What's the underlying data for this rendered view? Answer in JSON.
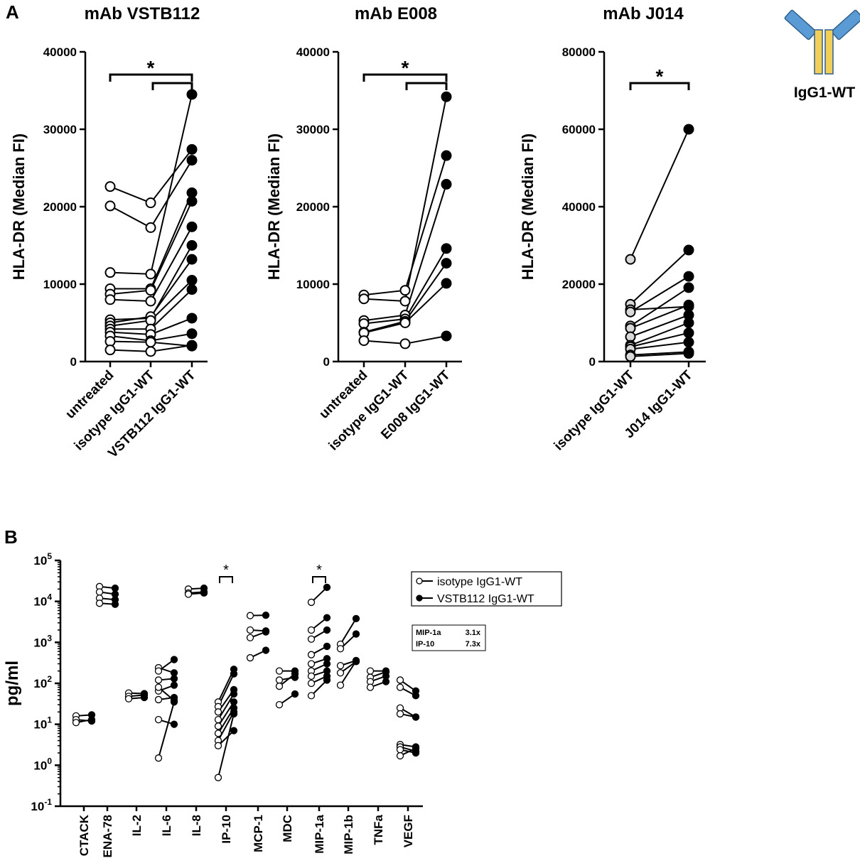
{
  "panel_a": {
    "label": "A",
    "antibody_label": "IgG1-WT",
    "colors": {
      "heavy_chain": "#5b9bd5",
      "light_chain": "#f2cf58",
      "outline": "#2e5f8a"
    }
  },
  "panel_b": {
    "label": "B"
  },
  "chart_data": [
    {
      "type": "line",
      "title": "mAb VSTB112",
      "ylabel": "HLA-DR (Median FI)",
      "ylim": [
        0,
        40000
      ],
      "yticks": [
        "0",
        "10000",
        "20000",
        "30000",
        "40000"
      ],
      "yticks_values": [
        0,
        10000,
        20000,
        30000,
        40000
      ],
      "categories": [
        "untreated",
        "isotype IgG1-WT",
        "VSTB112 IgG1-WT"
      ],
      "marker_styles": [
        "open",
        "open",
        "filled"
      ],
      "series": [
        [
          22600,
          20500,
          27400
        ],
        [
          20100,
          17300,
          26000
        ],
        [
          11500,
          11300,
          34500
        ],
        [
          9400,
          9400,
          21800
        ],
        [
          8700,
          9200,
          20700
        ],
        [
          8000,
          7800,
          17400
        ],
        [
          5400,
          5600,
          15000
        ],
        [
          5000,
          5800,
          13200
        ],
        [
          4600,
          5300,
          10500
        ],
        [
          4200,
          4200,
          9300
        ],
        [
          3800,
          3500,
          5600
        ],
        [
          3300,
          2700,
          3600
        ],
        [
          2600,
          2500,
          2000
        ],
        [
          1500,
          1300,
          2100
        ]
      ],
      "annotations": [
        "*"
      ]
    },
    {
      "type": "line",
      "title": "mAb E008",
      "ylabel": "HLA-DR (Median FI)",
      "ylim": [
        0,
        40000
      ],
      "yticks": [
        "0",
        "10000",
        "20000",
        "30000",
        "40000"
      ],
      "yticks_values": [
        0,
        10000,
        20000,
        30000,
        40000
      ],
      "categories": [
        "untreated",
        "isotype IgG1-WT",
        "E008 IgG1-WT"
      ],
      "marker_styles": [
        "open",
        "open",
        "filled"
      ],
      "series": [
        [
          8600,
          9200,
          26600
        ],
        [
          8100,
          7800,
          34200
        ],
        [
          5300,
          6000,
          22900
        ],
        [
          4900,
          5500,
          14600
        ],
        [
          3800,
          5200,
          12700
        ],
        [
          3700,
          5000,
          10100
        ],
        [
          2700,
          2300,
          3300
        ]
      ],
      "annotations": [
        "*"
      ]
    },
    {
      "type": "line",
      "title": "mAb J014",
      "ylabel": "HLA-DR (Median FI)",
      "ylim": [
        0,
        80000
      ],
      "yticks": [
        "0",
        "20000",
        "40000",
        "60000",
        "80000"
      ],
      "yticks_values": [
        0,
        20000,
        40000,
        60000,
        80000
      ],
      "categories": [
        "isotype IgG1-WT",
        "J014 IgG1-WT"
      ],
      "marker_styles": [
        "grey",
        "filled"
      ],
      "series": [
        [
          26400,
          60000
        ],
        [
          14800,
          28800
        ],
        [
          13400,
          14200
        ],
        [
          12800,
          22000
        ],
        [
          9200,
          19100
        ],
        [
          8600,
          14600
        ],
        [
          6400,
          12000
        ],
        [
          4200,
          10000
        ],
        [
          3800,
          7400
        ],
        [
          3200,
          5000
        ],
        [
          1700,
          2500
        ],
        [
          1300,
          2100
        ]
      ],
      "annotations": [
        "*"
      ]
    },
    {
      "type": "scatter",
      "scale": "log",
      "ylabel": "pg/ml",
      "yticks": [
        {
          "base": "10",
          "exp": "-1"
        },
        {
          "base": "10",
          "exp": "0"
        },
        {
          "base": "10",
          "exp": "1"
        },
        {
          "base": "10",
          "exp": "2"
        },
        {
          "base": "10",
          "exp": "3"
        },
        {
          "base": "10",
          "exp": "4"
        },
        {
          "base": "10",
          "exp": "5"
        }
      ],
      "ylim": [
        0.1,
        100000
      ],
      "categories": [
        "CTACK",
        "ENA-78",
        "IL-2",
        "IL-6",
        "IL-8",
        "IP-10",
        "MCP-1",
        "MDC",
        "MIP-1a",
        "MIP-1b",
        "TNFa",
        "VEGF"
      ],
      "legend": [
        "isotype IgG1-WT",
        "VSTB112 IgG1-WT"
      ],
      "pairs": [
        [
          [
            16,
            17
          ],
          [
            13,
            12
          ],
          [
            11,
            13
          ]
        ],
        [
          [
            23000,
            21000
          ],
          [
            17000,
            15000
          ],
          [
            12000,
            11000
          ],
          [
            9000,
            8500
          ]
        ],
        [
          [
            58,
            56
          ],
          [
            48,
            52
          ],
          [
            42,
            45
          ]
        ],
        [
          [
            240,
            180
          ],
          [
            200,
            380
          ],
          [
            120,
            130
          ],
          [
            65,
            90
          ],
          [
            40,
            45
          ],
          [
            13,
            10
          ],
          [
            1.5,
            35
          ],
          [
            80,
            38
          ]
        ],
        [
          [
            20000,
            21000
          ],
          [
            16000,
            17000
          ],
          [
            15000,
            16000
          ]
        ],
        [
          [
            35,
            220
          ],
          [
            27,
            170
          ],
          [
            20,
            70
          ],
          [
            13,
            55
          ],
          [
            9,
            35
          ],
          [
            6,
            25
          ],
          [
            4,
            20
          ],
          [
            3,
            7
          ],
          [
            0.5,
            18
          ]
        ],
        [
          [
            4500,
            4600
          ],
          [
            2000,
            1900
          ],
          [
            1300,
            1800
          ],
          [
            420,
            640
          ]
        ],
        [
          [
            200,
            200
          ],
          [
            120,
            140
          ],
          [
            85,
            170
          ],
          [
            30,
            55
          ]
        ],
        [
          [
            9500,
            22000
          ],
          [
            2000,
            4000
          ],
          [
            1200,
            2000
          ],
          [
            500,
            800
          ],
          [
            300,
            400
          ],
          [
            200,
            300
          ],
          [
            150,
            200
          ],
          [
            100,
            150
          ],
          [
            50,
            120
          ]
        ],
        [
          [
            900,
            3800
          ],
          [
            700,
            1600
          ],
          [
            270,
            360
          ],
          [
            180,
            340
          ],
          [
            90,
            350
          ]
        ],
        [
          [
            200,
            200
          ],
          [
            140,
            190
          ],
          [
            110,
            150
          ],
          [
            80,
            110
          ]
        ],
        [
          [
            120,
            65
          ],
          [
            80,
            50
          ],
          [
            25,
            15
          ],
          [
            18,
            15
          ],
          [
            3.2,
            2.8
          ],
          [
            2.8,
            2.2
          ],
          [
            2.4,
            2.0
          ],
          [
            1.7,
            2.6
          ]
        ]
      ],
      "annotations": [
        "*",
        "*"
      ],
      "fold_change_table": [
        {
          "name": "MIP-1a",
          "value": "3.1x"
        },
        {
          "name": "IP-10",
          "value": "7.3x"
        }
      ]
    }
  ]
}
